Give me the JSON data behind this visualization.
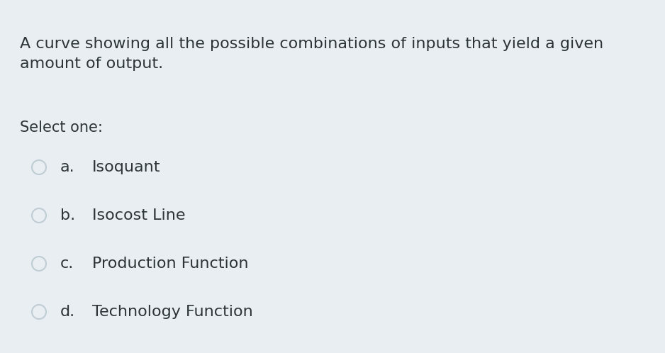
{
  "background_color": "#e8eef1",
  "question_text_line1": "A curve showing all the possible combinations of inputs that yield a given",
  "question_text_line2": "amount of output.",
  "select_label": "Select one:",
  "options": [
    {
      "letter": "a.",
      "text": "Isoquant"
    },
    {
      "letter": "b.",
      "text": "Isocost Line"
    },
    {
      "letter": "c.",
      "text": "Production Function"
    },
    {
      "letter": "d.",
      "text": "Technology Function"
    }
  ],
  "question_fontsize": 16,
  "select_fontsize": 15,
  "option_fontsize": 16,
  "text_color": "#2d3436",
  "circle_edgecolor": "#c0cdd4",
  "circle_facecolor": "#e8eef1",
  "fig_width": 9.38,
  "fig_height": 4.98,
  "dpi": 100
}
